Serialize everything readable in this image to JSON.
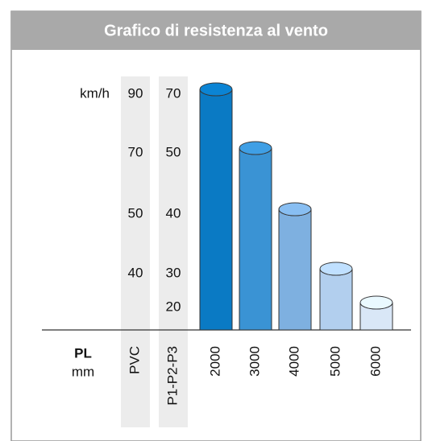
{
  "chart_data": {
    "type": "bar",
    "title": "Grafico di resistenza al vento",
    "y_unit": "km/h",
    "x_label": "PL",
    "x_unit": "mm",
    "categories": [
      "2000",
      "3000",
      "4000",
      "5000",
      "6000"
    ],
    "values": [
      70,
      50,
      40,
      30,
      20
    ],
    "colors": [
      "#0a7ac4",
      "#3a93d4",
      "#7eb0e0",
      "#b2cfee",
      "#d9e7f7"
    ],
    "scales": [
      {
        "name": "PVC",
        "values": [
          90,
          70,
          50,
          40,
          null
        ]
      },
      {
        "name": "P1-P2-P3",
        "values": [
          70,
          50,
          40,
          30,
          20
        ]
      }
    ],
    "value_scale": 1
  }
}
